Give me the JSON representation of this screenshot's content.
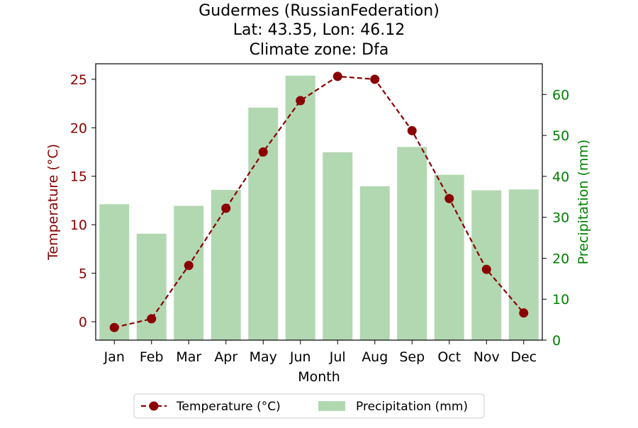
{
  "chart_data": {
    "type": "bar+line",
    "title_lines": [
      "Gudermes (RussianFederation)",
      "Lat: 43.35, Lon: 46.12",
      "Climate zone: Dfa"
    ],
    "categories": [
      "Jan",
      "Feb",
      "Mar",
      "Apr",
      "May",
      "Jun",
      "Jul",
      "Aug",
      "Sep",
      "Oct",
      "Nov",
      "Dec"
    ],
    "xlabel": "Month",
    "y_left": {
      "label": "Temperature (°C)",
      "ticks": [
        0,
        5,
        10,
        15,
        20,
        25
      ],
      "range": [
        -1.9,
        26.6
      ],
      "color": "#8b0000"
    },
    "y_right": {
      "label": "Precipitation (mm)",
      "ticks": [
        0,
        10,
        20,
        30,
        40,
        50,
        60
      ],
      "range": [
        0,
        67.5
      ],
      "color": "#008000"
    },
    "series": [
      {
        "name": "Temperature (°C)",
        "kind": "line",
        "axis": "left",
        "color": "#8b0000",
        "style": "dashed",
        "marker": "circle",
        "values": [
          -0.6,
          0.3,
          5.8,
          11.7,
          17.5,
          22.8,
          25.3,
          25.0,
          19.7,
          12.7,
          5.4,
          0.9
        ]
      },
      {
        "name": "Precipitation (mm)",
        "kind": "bar",
        "axis": "right",
        "color": "#b2d8b2",
        "values": [
          33.2,
          26.0,
          32.8,
          36.7,
          56.8,
          64.6,
          45.9,
          37.6,
          47.2,
          40.4,
          36.6,
          36.8
        ]
      }
    ],
    "legend": {
      "placement": "bottom-center",
      "entries": [
        "Temperature (°C)",
        "Precipitation (mm)"
      ]
    },
    "grid": false
  }
}
